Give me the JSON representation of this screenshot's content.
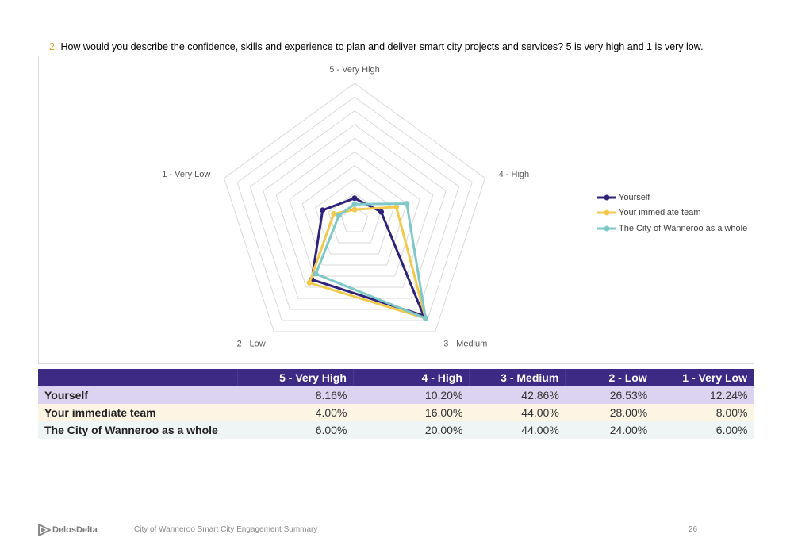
{
  "question": {
    "number": "2.",
    "text": "How would you describe the confidence, skills and experience to plan and deliver smart city projects and services? 5 is very high and 1 is very low."
  },
  "chart_data": {
    "type": "radar",
    "axes": [
      "5 - Very High",
      "4 - High",
      "3 - Medium",
      "2 - Low",
      "1 - Very Low"
    ],
    "rlim": [
      0,
      50
    ],
    "grid": true,
    "legend_position": "right",
    "series": [
      {
        "name": "Yourself",
        "values": [
          8.16,
          10.2,
          42.86,
          26.53,
          12.24
        ],
        "color": "#2e2279"
      },
      {
        "name": "Your immediate team",
        "values": [
          4.0,
          16.0,
          44.0,
          28.0,
          8.0
        ],
        "color": "#f2c94c"
      },
      {
        "name": "The City of Wanneroo as a whole",
        "values": [
          6.0,
          20.0,
          44.0,
          24.0,
          6.0
        ],
        "color": "#7fc8c8"
      }
    ]
  },
  "table": {
    "headers": [
      "",
      "5 - Very High",
      "4 - High",
      "3 - Medium",
      "2 - Low",
      "1 - Very Low"
    ],
    "rows": [
      {
        "label": "Yourself",
        "cells": [
          "8.16%",
          "10.20%",
          "42.86%",
          "26.53%",
          "12.24%"
        ]
      },
      {
        "label": "Your immediate team",
        "cells": [
          "4.00%",
          "16.00%",
          "44.00%",
          "28.00%",
          "8.00%"
        ]
      },
      {
        "label": "The City of Wanneroo as a whole",
        "cells": [
          "6.00%",
          "20.00%",
          "44.00%",
          "24.00%",
          "6.00%"
        ]
      }
    ]
  },
  "footer": {
    "logo_text": "DelosDelta",
    "document_title": "City of Wanneroo Smart City Engagement Summary",
    "page_number": "26"
  }
}
